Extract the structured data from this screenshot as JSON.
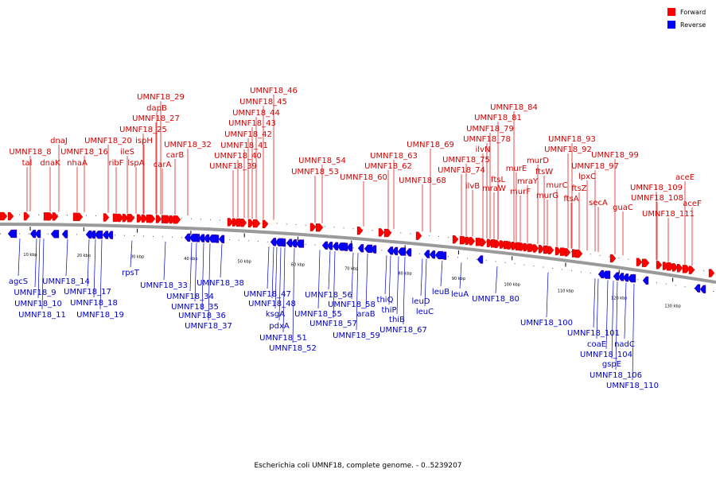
{
  "caption": "Escherichia coli UMNF18, complete genome. - 0..5239207",
  "colors": {
    "forward": "#ff0000",
    "reverse": "#0000ff",
    "backbone": "#9a9a9a"
  },
  "legend": [
    {
      "label": "Forward",
      "color": "#ff0000"
    },
    {
      "label": "Reverse",
      "color": "#0000ff"
    }
  ],
  "ticks": [
    "10 kbp",
    "20 kbp",
    "30 kbp",
    "40 kbp",
    "50 kbp",
    "60 kbp",
    "70 kbp",
    "80 kbp",
    "90 kbp",
    "100 kbp",
    "110 kbp",
    "120 kbp",
    "130 kbp"
  ],
  "forward_genes": [
    "tal",
    "UMNF18_8",
    "dnaK",
    "dnaJ",
    "UMNF18_16",
    "nhaA",
    "ribF",
    "UMNF18_20",
    "ileS",
    "lspA",
    "ispH",
    "UMNF18_25",
    "UMNF18_27",
    "dapB",
    "UMNF18_29",
    "carA",
    "carB",
    "UMNF18_32",
    "UMNF18_39",
    "UMNF18_40",
    "UMNF18_41",
    "UMNF18_42",
    "UMNF18_43",
    "UMNF18_44",
    "UMNF18_45",
    "UMNF18_46",
    "UMNF18_53",
    "UMNF18_54",
    "UMNF18_60",
    "UMNF18_62",
    "UMNF18_63",
    "UMNF18_68",
    "UMNF18_69",
    "UMNF18_74",
    "UMNF18_75",
    "ilvB",
    "ilvN",
    "UMNF18_78",
    "UMNF18_79",
    "UMNF18_81",
    "UMNF18_84",
    "mraW",
    "ftsL",
    "murE",
    "murF",
    "mraY",
    "murD",
    "ftsW",
    "murG",
    "murC",
    "UMNF18_92",
    "UMNF18_93",
    "ftsA",
    "ftsZ",
    "lpxC",
    "UMNF18_97",
    "secA",
    "UMNF18_99",
    "guaC",
    "UMNF18_111",
    "UMNF18_108",
    "UMNF18_109",
    "aceE",
    "aceF"
  ],
  "reverse_genes": [
    "agcS",
    "UMNF18_9",
    "UMNF18_10",
    "UMNF18_11",
    "UMNF18_14",
    "UMNF18_17",
    "UMNF18_18",
    "UMNF18_19",
    "rpsT",
    "UMNF18_33",
    "UMNF18_34",
    "UMNF18_35",
    "UMNF18_36",
    "UMNF18_37",
    "UMNF18_38",
    "UMNF18_47",
    "UMNF18_48",
    "ksgA",
    "pdxA",
    "UMNF18_51",
    "UMNF18_52",
    "UMNF18_55",
    "UMNF18_56",
    "UMNF18_57",
    "UMNF18_58",
    "UMNF18_59",
    "araB",
    "thiQ",
    "thiP",
    "thiB",
    "UMNF18_67",
    "leuD",
    "leuC",
    "leuB",
    "leuA",
    "UMNF18_80",
    "UMNF18_100",
    "UMNF18_101",
    "coaE",
    "UMNF18_104",
    "gspE",
    "nadC",
    "UMNF18_106",
    "UMNF18_110"
  ]
}
